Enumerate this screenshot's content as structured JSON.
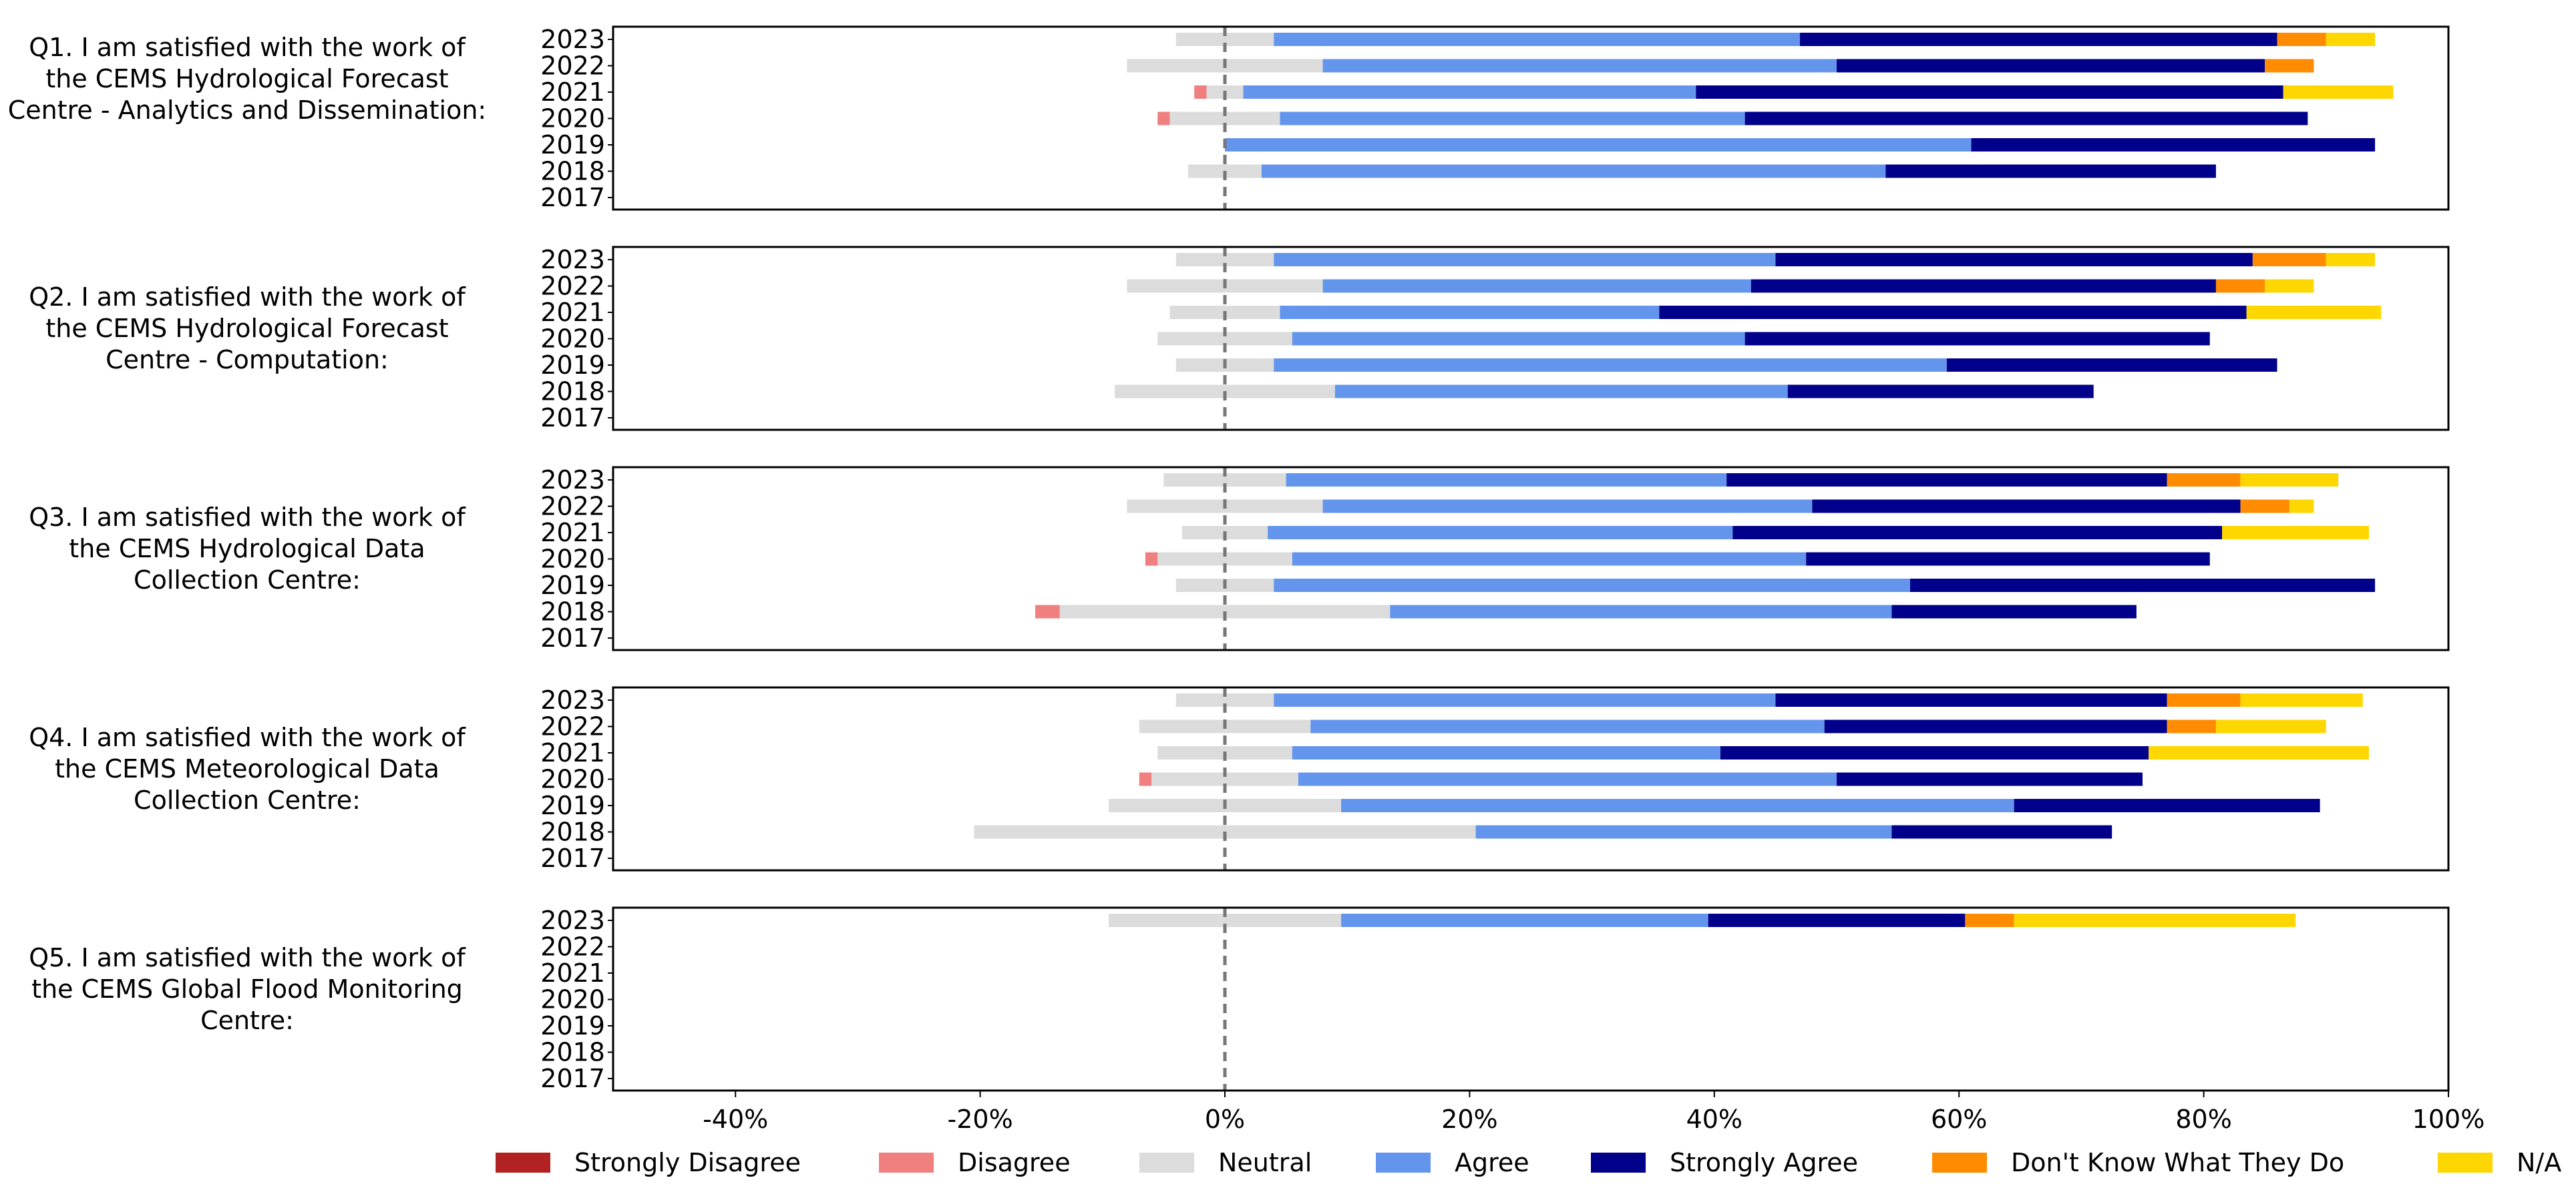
{
  "chart_data": {
    "type": "bar",
    "orientation": "horizontal",
    "stacking": "diverging",
    "years": [
      "2023",
      "2022",
      "2021",
      "2020",
      "2019",
      "2018",
      "2017"
    ],
    "xlim": [
      -50,
      100
    ],
    "x_ticks": [
      -40,
      -20,
      0,
      20,
      40,
      60,
      80,
      100
    ],
    "x_tick_labels": [
      "-40%",
      "-20%",
      "0%",
      "20%",
      "40%",
      "60%",
      "80%",
      "100%"
    ],
    "center_line": 0,
    "colors": {
      "Strongly Disagree": "#b22222",
      "Disagree": "#f08080",
      "Neutral": "#dcdcdc",
      "Agree": "#6495ed",
      "Strongly Agree": "#00008b",
      "Don't Know What They Do": "#ff8c00",
      "N/A": "#ffd700"
    },
    "legend": {
      "placement": "bottom",
      "entries": [
        "Strongly Disagree",
        "Disagree",
        "Neutral",
        "Agree",
        "Strongly Agree",
        "Don't Know What They Do",
        "N/A"
      ]
    },
    "panels": [
      {
        "question": "Q1. I am satisfied with the work of the CEMS Hydrological Forecast Centre - Analytics and Dissemination:",
        "rows": [
          {
            "year": "2023",
            "Strongly Disagree": 0,
            "Disagree": 0,
            "Neutral": 8,
            "Agree": 43,
            "Strongly Agree": 39,
            "Don't Know What They Do": 4,
            "N/A": 4
          },
          {
            "year": "2022",
            "Strongly Disagree": 0,
            "Disagree": 0,
            "Neutral": 16,
            "Agree": 42,
            "Strongly Agree": 35,
            "Don't Know What They Do": 4,
            "N/A": 0
          },
          {
            "year": "2021",
            "Strongly Disagree": 0,
            "Disagree": 1,
            "Neutral": 3,
            "Agree": 37,
            "Strongly Agree": 48,
            "Don't Know What They Do": 0,
            "N/A": 9
          },
          {
            "year": "2020",
            "Strongly Disagree": 0,
            "Disagree": 1,
            "Neutral": 9,
            "Agree": 38,
            "Strongly Agree": 46,
            "Don't Know What They Do": 0,
            "N/A": 0
          },
          {
            "year": "2019",
            "Strongly Disagree": 0,
            "Disagree": 0,
            "Neutral": 0,
            "Agree": 61,
            "Strongly Agree": 33,
            "Don't Know What They Do": 0,
            "N/A": 0
          },
          {
            "year": "2018",
            "Strongly Disagree": 0,
            "Disagree": 0,
            "Neutral": 6,
            "Agree": 51,
            "Strongly Agree": 27,
            "Don't Know What They Do": 0,
            "N/A": 0
          },
          {
            "year": "2017",
            "Strongly Disagree": 0,
            "Disagree": 0,
            "Neutral": 0,
            "Agree": 0,
            "Strongly Agree": 0,
            "Don't Know What They Do": 0,
            "N/A": 0
          }
        ]
      },
      {
        "question": "Q2. I am satisfied with the work of the CEMS Hydrological Forecast Centre - Computation:",
        "rows": [
          {
            "year": "2023",
            "Strongly Disagree": 0,
            "Disagree": 0,
            "Neutral": 8,
            "Agree": 41,
            "Strongly Agree": 39,
            "Don't Know What They Do": 6,
            "N/A": 4
          },
          {
            "year": "2022",
            "Strongly Disagree": 0,
            "Disagree": 0,
            "Neutral": 16,
            "Agree": 35,
            "Strongly Agree": 38,
            "Don't Know What They Do": 4,
            "N/A": 4
          },
          {
            "year": "2021",
            "Strongly Disagree": 0,
            "Disagree": 0,
            "Neutral": 9,
            "Agree": 31,
            "Strongly Agree": 48,
            "Don't Know What They Do": 0,
            "N/A": 11
          },
          {
            "year": "2020",
            "Strongly Disagree": 0,
            "Disagree": 0,
            "Neutral": 11,
            "Agree": 37,
            "Strongly Agree": 38,
            "Don't Know What They Do": 0,
            "N/A": 0
          },
          {
            "year": "2019",
            "Strongly Disagree": 0,
            "Disagree": 0,
            "Neutral": 8,
            "Agree": 55,
            "Strongly Agree": 27,
            "Don't Know What They Do": 0,
            "N/A": 0
          },
          {
            "year": "2018",
            "Strongly Disagree": 0,
            "Disagree": 0,
            "Neutral": 18,
            "Agree": 37,
            "Strongly Agree": 25,
            "Don't Know What They Do": 0,
            "N/A": 0
          },
          {
            "year": "2017",
            "Strongly Disagree": 0,
            "Disagree": 0,
            "Neutral": 0,
            "Agree": 0,
            "Strongly Agree": 0,
            "Don't Know What They Do": 0,
            "N/A": 0
          }
        ]
      },
      {
        "question": "Q3. I am satisfied with the work of the CEMS Hydrological Data Collection Centre:",
        "rows": [
          {
            "year": "2023",
            "Strongly Disagree": 0,
            "Disagree": 0,
            "Neutral": 10,
            "Agree": 36,
            "Strongly Agree": 36,
            "Don't Know What They Do": 6,
            "N/A": 8
          },
          {
            "year": "2022",
            "Strongly Disagree": 0,
            "Disagree": 0,
            "Neutral": 16,
            "Agree": 40,
            "Strongly Agree": 35,
            "Don't Know What They Do": 4,
            "N/A": 2
          },
          {
            "year": "2021",
            "Strongly Disagree": 0,
            "Disagree": 0,
            "Neutral": 7,
            "Agree": 38,
            "Strongly Agree": 40,
            "Don't Know What They Do": 0,
            "N/A": 12
          },
          {
            "year": "2020",
            "Strongly Disagree": 0,
            "Disagree": 1,
            "Neutral": 11,
            "Agree": 42,
            "Strongly Agree": 33,
            "Don't Know What They Do": 0,
            "N/A": 0
          },
          {
            "year": "2019",
            "Strongly Disagree": 0,
            "Disagree": 0,
            "Neutral": 8,
            "Agree": 52,
            "Strongly Agree": 38,
            "Don't Know What They Do": 0,
            "N/A": 0
          },
          {
            "year": "2018",
            "Strongly Disagree": 0,
            "Disagree": 2,
            "Neutral": 27,
            "Agree": 41,
            "Strongly Agree": 20,
            "Don't Know What They Do": 0,
            "N/A": 0
          },
          {
            "year": "2017",
            "Strongly Disagree": 0,
            "Disagree": 0,
            "Neutral": 0,
            "Agree": 0,
            "Strongly Agree": 0,
            "Don't Know What They Do": 0,
            "N/A": 0
          }
        ]
      },
      {
        "question": "Q4. I am satisfied with the work of the CEMS Meteorological Data Collection Centre:",
        "rows": [
          {
            "year": "2023",
            "Strongly Disagree": 0,
            "Disagree": 0,
            "Neutral": 8,
            "Agree": 41,
            "Strongly Agree": 32,
            "Don't Know What They Do": 6,
            "N/A": 10
          },
          {
            "year": "2022",
            "Strongly Disagree": 0,
            "Disagree": 0,
            "Neutral": 14,
            "Agree": 42,
            "Strongly Agree": 28,
            "Don't Know What They Do": 4,
            "N/A": 9
          },
          {
            "year": "2021",
            "Strongly Disagree": 0,
            "Disagree": 0,
            "Neutral": 11,
            "Agree": 35,
            "Strongly Agree": 35,
            "Don't Know What They Do": 0,
            "N/A": 18
          },
          {
            "year": "2020",
            "Strongly Disagree": 0,
            "Disagree": 1,
            "Neutral": 12,
            "Agree": 44,
            "Strongly Agree": 25,
            "Don't Know What They Do": 0,
            "N/A": 0
          },
          {
            "year": "2019",
            "Strongly Disagree": 0,
            "Disagree": 0,
            "Neutral": 19,
            "Agree": 55,
            "Strongly Agree": 25,
            "Don't Know What They Do": 0,
            "N/A": 0
          },
          {
            "year": "2018",
            "Strongly Disagree": 0,
            "Disagree": 0,
            "Neutral": 41,
            "Agree": 34,
            "Strongly Agree": 18,
            "Don't Know What They Do": 0,
            "N/A": 0
          },
          {
            "year": "2017",
            "Strongly Disagree": 0,
            "Disagree": 0,
            "Neutral": 0,
            "Agree": 0,
            "Strongly Agree": 0,
            "Don't Know What They Do": 0,
            "N/A": 0
          }
        ]
      },
      {
        "question": "Q5. I am satisfied with the work of the CEMS Global Flood Monitoring Centre:",
        "rows": [
          {
            "year": "2023",
            "Strongly Disagree": 0,
            "Disagree": 0,
            "Neutral": 19,
            "Agree": 30,
            "Strongly Agree": 21,
            "Don't Know What They Do": 4,
            "N/A": 23
          },
          {
            "year": "2022",
            "Strongly Disagree": 0,
            "Disagree": 0,
            "Neutral": 0,
            "Agree": 0,
            "Strongly Agree": 0,
            "Don't Know What They Do": 0,
            "N/A": 0
          },
          {
            "year": "2021",
            "Strongly Disagree": 0,
            "Disagree": 0,
            "Neutral": 0,
            "Agree": 0,
            "Strongly Agree": 0,
            "Don't Know What They Do": 0,
            "N/A": 0
          },
          {
            "year": "2020",
            "Strongly Disagree": 0,
            "Disagree": 0,
            "Neutral": 0,
            "Agree": 0,
            "Strongly Agree": 0,
            "Don't Know What They Do": 0,
            "N/A": 0
          },
          {
            "year": "2019",
            "Strongly Disagree": 0,
            "Disagree": 0,
            "Neutral": 0,
            "Agree": 0,
            "Strongly Agree": 0,
            "Don't Know What They Do": 0,
            "N/A": 0
          },
          {
            "year": "2018",
            "Strongly Disagree": 0,
            "Disagree": 0,
            "Neutral": 0,
            "Agree": 0,
            "Strongly Agree": 0,
            "Don't Know What They Do": 0,
            "N/A": 0
          },
          {
            "year": "2017",
            "Strongly Disagree": 0,
            "Disagree": 0,
            "Neutral": 0,
            "Agree": 0,
            "Strongly Agree": 0,
            "Don't Know What They Do": 0,
            "N/A": 0
          }
        ]
      }
    ]
  }
}
